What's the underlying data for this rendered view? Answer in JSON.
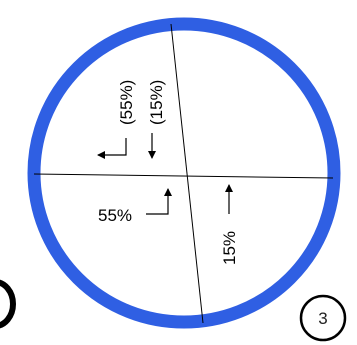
{
  "diagram": {
    "ring_color": "#2f5fe3",
    "line_color": "#000000",
    "labels": {
      "upper_left_pct": "(55%)",
      "upper_right_pct": "(15%)",
      "lower_left_pct": "55%",
      "lower_right_pct": "15%"
    },
    "page_number": "3"
  }
}
